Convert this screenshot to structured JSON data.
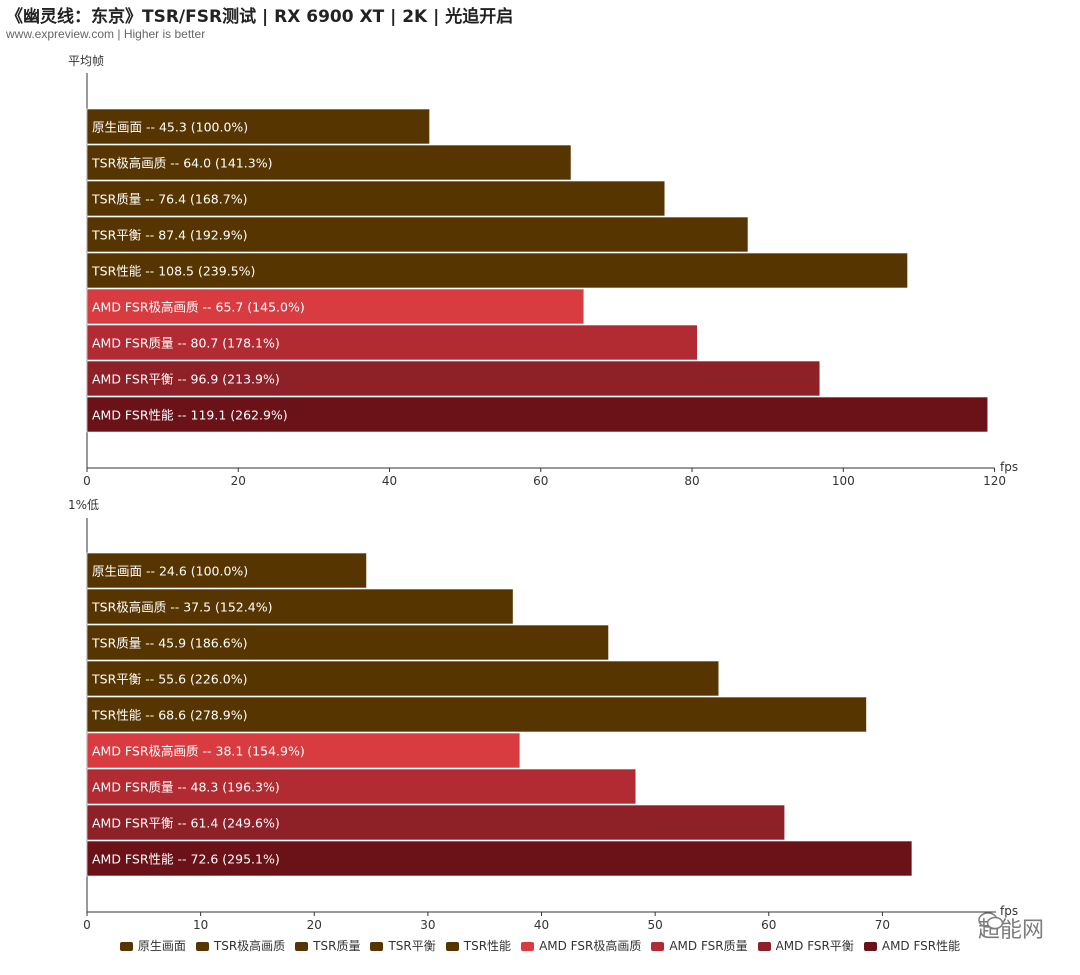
{
  "header": {
    "title": "《幽灵线：东京》TSR/FSR测试 | RX 6900 XT | 2K | 光追开启",
    "subtitle": "www.expreview.com | Higher is better"
  },
  "watermark": {
    "text": "超能网",
    "icon": "wechat-icon"
  },
  "colors": {
    "tsr": "#573500",
    "fsr_ultra": "#d83c41",
    "fsr_quality": "#b22b33",
    "fsr_balanced": "#8e2027",
    "fsr_performance": "#6a1217"
  },
  "chart_data": [
    {
      "type": "bar",
      "orientation": "horizontal",
      "ylabel": "平均帧",
      "xlabel": "fps",
      "xlim": [
        0,
        120
      ],
      "xticks": [
        0,
        20,
        40,
        60,
        80,
        100,
        120
      ],
      "grid": false,
      "series": [
        {
          "name": "原生画面",
          "value": 45.3,
          "label": "原生画面  --  45.3 (100.0%)",
          "color": "#573500"
        },
        {
          "name": "TSR极高画质",
          "value": 64.0,
          "label": "TSR极高画质  --  64.0 (141.3%)",
          "color": "#573500"
        },
        {
          "name": "TSR质量",
          "value": 76.4,
          "label": "TSR质量  --  76.4 (168.7%)",
          "color": "#573500"
        },
        {
          "name": "TSR平衡",
          "value": 87.4,
          "label": "TSR平衡  --  87.4 (192.9%)",
          "color": "#573500"
        },
        {
          "name": "TSR性能",
          "value": 108.5,
          "label": "TSR性能  --  108.5 (239.5%)",
          "color": "#573500"
        },
        {
          "name": "AMD FSR极高画质",
          "value": 65.7,
          "label": "AMD FSR极高画质  --  65.7 (145.0%)",
          "color": "#d83c41"
        },
        {
          "name": "AMD FSR质量",
          "value": 80.7,
          "label": "AMD FSR质量  --  80.7 (178.1%)",
          "color": "#b22b33"
        },
        {
          "name": "AMD FSR平衡",
          "value": 96.9,
          "label": "AMD FSR平衡  --  96.9 (213.9%)",
          "color": "#8e2027"
        },
        {
          "name": "AMD FSR性能",
          "value": 119.1,
          "label": "AMD FSR性能  --  119.1 (262.9%)",
          "color": "#6a1217"
        }
      ]
    },
    {
      "type": "bar",
      "orientation": "horizontal",
      "ylabel": "1%低",
      "xlabel": "fps",
      "xlim": [
        0,
        80
      ],
      "xticks": [
        0,
        10,
        20,
        30,
        40,
        50,
        60,
        70
      ],
      "grid": false,
      "series": [
        {
          "name": "原生画面",
          "value": 24.6,
          "label": "原生画面  --  24.6 (100.0%)",
          "color": "#573500"
        },
        {
          "name": "TSR极高画质",
          "value": 37.5,
          "label": "TSR极高画质  --  37.5 (152.4%)",
          "color": "#573500"
        },
        {
          "name": "TSR质量",
          "value": 45.9,
          "label": "TSR质量  --  45.9 (186.6%)",
          "color": "#573500"
        },
        {
          "name": "TSR平衡",
          "value": 55.6,
          "label": "TSR平衡  --  55.6 (226.0%)",
          "color": "#573500"
        },
        {
          "name": "TSR性能",
          "value": 68.6,
          "label": "TSR性能  --  68.6 (278.9%)",
          "color": "#573500"
        },
        {
          "name": "AMD FSR极高画质",
          "value": 38.1,
          "label": "AMD FSR极高画质  --  38.1 (154.9%)",
          "color": "#d83c41"
        },
        {
          "name": "AMD FSR质量",
          "value": 48.3,
          "label": "AMD FSR质量  --  48.3 (196.3%)",
          "color": "#b22b33"
        },
        {
          "name": "AMD FSR平衡",
          "value": 61.4,
          "label": "AMD FSR平衡  --  61.4 (249.6%)",
          "color": "#8e2027"
        },
        {
          "name": "AMD FSR性能",
          "value": 72.6,
          "label": "AMD FSR性能  --  72.6 (295.1%)",
          "color": "#6a1217"
        }
      ]
    }
  ],
  "legend": {
    "placement": "bottom-center",
    "items": [
      {
        "label": "原生画面",
        "color": "#573500"
      },
      {
        "label": "TSR极高画质",
        "color": "#573500"
      },
      {
        "label": "TSR质量",
        "color": "#573500"
      },
      {
        "label": "TSR平衡",
        "color": "#573500"
      },
      {
        "label": "TSR性能",
        "color": "#573500"
      },
      {
        "label": "AMD FSR极高画质",
        "color": "#d83c41"
      },
      {
        "label": "AMD FSR质量",
        "color": "#b22b33"
      },
      {
        "label": "AMD FSR平衡",
        "color": "#8e2027"
      },
      {
        "label": "AMD FSR性能",
        "color": "#6a1217"
      }
    ]
  }
}
